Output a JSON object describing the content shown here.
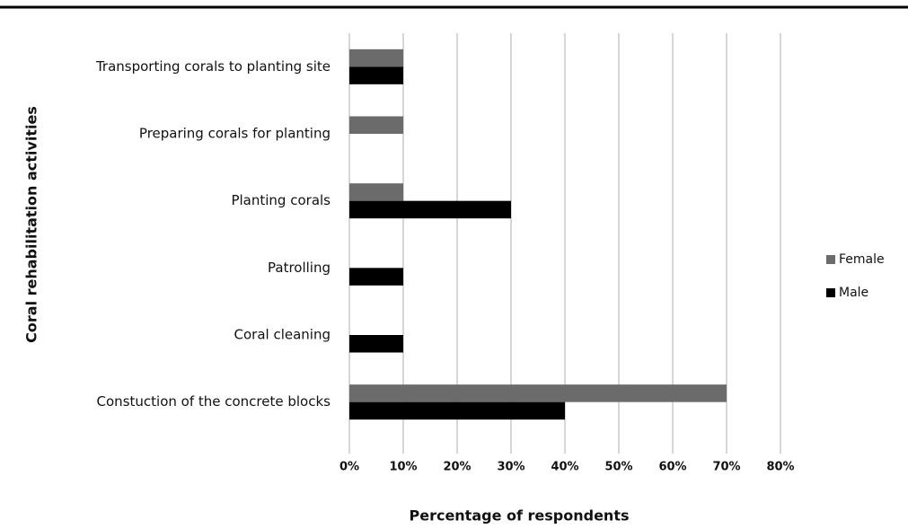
{
  "chart_data": {
    "type": "hbar",
    "x_label": "Percentage of respondents",
    "y_label": "Coral rehabilitation activities",
    "categories": [
      "Transporting corals  to planting site",
      "Preparing corals for planting",
      "Planting corals",
      "Patrolling",
      "Coral cleaning",
      "Constuction of the concrete blocks"
    ],
    "series": [
      {
        "name": "Female",
        "color": "#6b6b6b",
        "values": [
          10,
          10,
          10,
          0,
          0,
          70
        ]
      },
      {
        "name": "Male",
        "color": "#000000",
        "values": [
          10,
          0,
          30,
          10,
          10,
          40
        ]
      }
    ],
    "xlim": [
      0,
      80
    ],
    "xticks": [
      {
        "value": 0,
        "label": "0%"
      },
      {
        "value": 10,
        "label": "10%"
      },
      {
        "value": 20,
        "label": "20%"
      },
      {
        "value": 30,
        "label": "30%"
      },
      {
        "value": 40,
        "label": "40%"
      },
      {
        "value": 50,
        "label": "50%"
      },
      {
        "value": 60,
        "label": "60%"
      },
      {
        "value": 70,
        "label": "70%"
      },
      {
        "value": 80,
        "label": "80%"
      }
    ],
    "grid": true,
    "legend": "right"
  }
}
